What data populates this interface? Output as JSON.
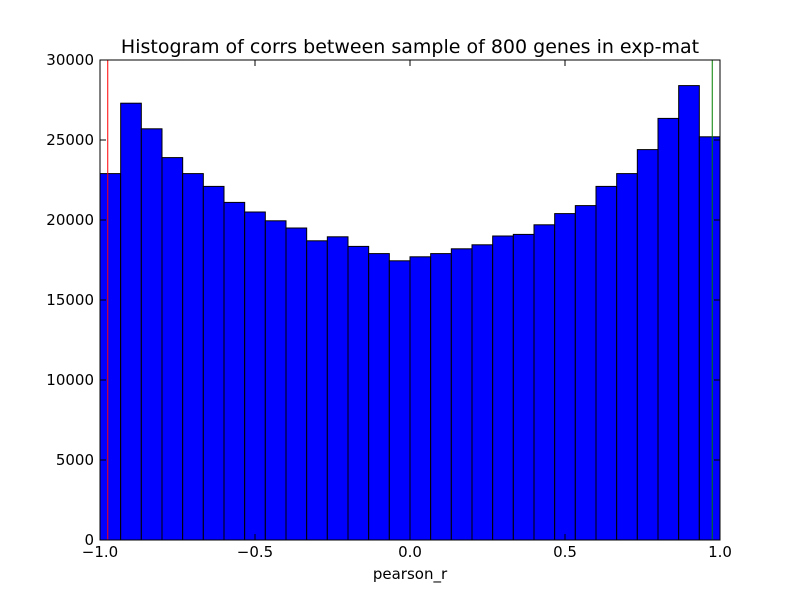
{
  "chart_data": {
    "type": "bar",
    "title": "Histogram of corrs between sample of 800 genes in exp-mat",
    "xlabel": "pearson_r",
    "ylabel": "",
    "xlim": [
      -1.0,
      1.0
    ],
    "ylim": [
      0,
      30000
    ],
    "grid": false,
    "bin_edges": [
      -1.0,
      -0.9333,
      -0.8667,
      -0.8,
      -0.7333,
      -0.6667,
      -0.6,
      -0.5333,
      -0.4667,
      -0.4,
      -0.3333,
      -0.2667,
      -0.2,
      -0.1333,
      -0.0667,
      0.0,
      0.0667,
      0.1333,
      0.2,
      0.2667,
      0.3333,
      0.4,
      0.4667,
      0.5333,
      0.6,
      0.6667,
      0.7333,
      0.8,
      0.8667,
      0.9333,
      1.0
    ],
    "values": [
      22900,
      27300,
      25700,
      23900,
      22900,
      22100,
      21100,
      20500,
      19950,
      19500,
      18700,
      18950,
      18350,
      17900,
      17450,
      17700,
      17900,
      18200,
      18450,
      19000,
      19100,
      19700,
      20400,
      20900,
      22100,
      22900,
      24400,
      26350,
      28400,
      25200
    ],
    "bar_color": "#0000ff",
    "x_ticks": [
      -1.0,
      -0.5,
      0.0,
      0.5,
      1.0
    ],
    "x_tick_labels": [
      "−1.0",
      "−0.5",
      "0.0",
      "0.5",
      "1.0"
    ],
    "y_ticks": [
      0,
      5000,
      10000,
      15000,
      20000,
      25000,
      30000
    ],
    "y_tick_labels": [
      "0",
      "5000",
      "10000",
      "15000",
      "20000",
      "25000",
      "30000"
    ],
    "vlines": [
      {
        "x": -0.975,
        "color": "#ff0000"
      },
      {
        "x": 0.975,
        "color": "#008000"
      }
    ]
  }
}
